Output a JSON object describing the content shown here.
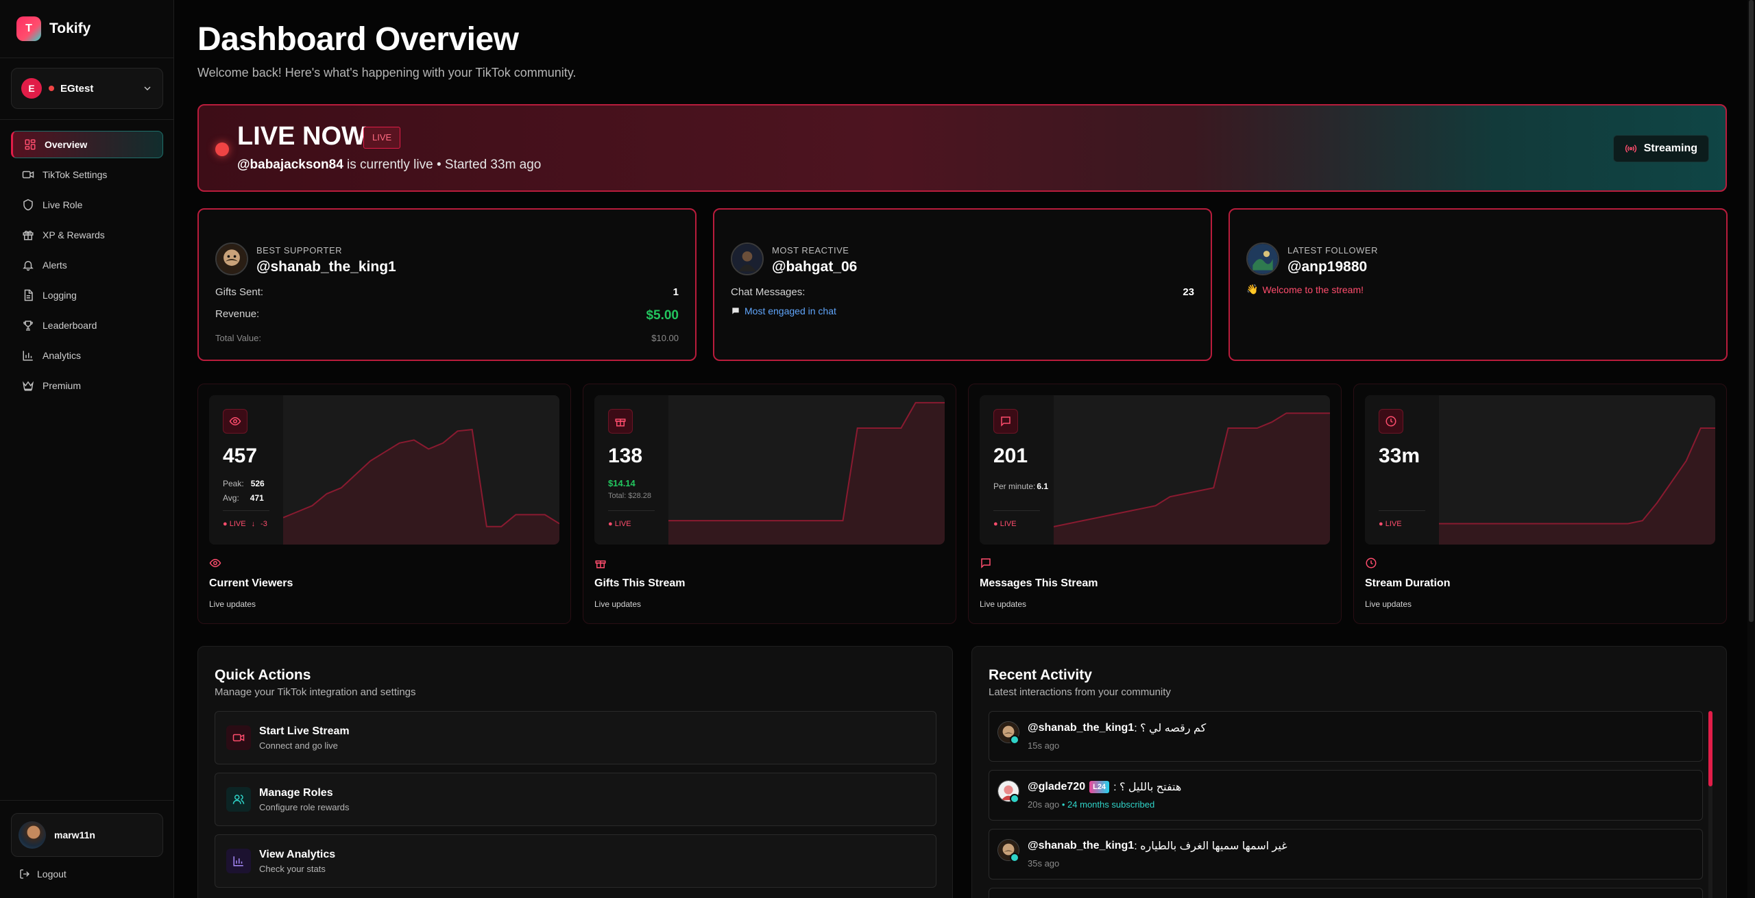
{
  "brand": {
    "logo_letter": "T",
    "name": "Tokify"
  },
  "account": {
    "initial": "E",
    "name": "EGtest"
  },
  "nav": [
    {
      "label": "Overview",
      "icon": "grid-icon",
      "active": true
    },
    {
      "label": "TikTok Settings",
      "icon": "video-icon"
    },
    {
      "label": "Live Role",
      "icon": "shield-icon"
    },
    {
      "label": "XP & Rewards",
      "icon": "gift-icon"
    },
    {
      "label": "Alerts",
      "icon": "bell-icon"
    },
    {
      "label": "Logging",
      "icon": "file-icon"
    },
    {
      "label": "Leaderboard",
      "icon": "trophy-icon"
    },
    {
      "label": "Analytics",
      "icon": "bar-chart-icon"
    },
    {
      "label": "Premium",
      "icon": "crown-icon"
    }
  ],
  "user": {
    "name": "marw11n",
    "logout": "Logout"
  },
  "header": {
    "title": "Dashboard Overview",
    "subtitle": "Welcome back! Here's what's happening with your TikTok community."
  },
  "live": {
    "title": "LIVE NOW",
    "tag": "LIVE",
    "username": "@babajackson84",
    "status_text": " is currently live • Started 33m ago",
    "button": "Streaming"
  },
  "supporters": {
    "best": {
      "label": "BEST SUPPORTER",
      "name": "@shanab_the_king1",
      "gifts_label": "Gifts Sent:",
      "gifts_value": "1",
      "revenue_label": "Revenue:",
      "revenue_value": "$5.00",
      "total_label": "Total Value:",
      "total_value": "$10.00"
    },
    "reactive": {
      "label": "MOST REACTIVE",
      "name": "@bahgat_06",
      "messages_label": "Chat Messages:",
      "messages_value": "23",
      "note": "Most engaged in chat"
    },
    "follower": {
      "label": "LATEST FOLLOWER",
      "name": "@anp19880",
      "note": "Welcome to the stream!"
    }
  },
  "stats": {
    "viewers": {
      "value": "457",
      "peak_label": "Peak:",
      "peak": "526",
      "avg_label": "Avg:",
      "avg": "471",
      "live": "● LIVE",
      "delta": "-3",
      "title": "Current Viewers",
      "sub": "Live updates"
    },
    "gifts": {
      "value": "138",
      "amount": "$14.14",
      "total": "Total: $28.28",
      "live": "● LIVE",
      "title": "Gifts This Stream",
      "sub": "Live updates"
    },
    "messages": {
      "value": "201",
      "rate_label": "Per minute:",
      "rate": "6.1",
      "live": "● LIVE",
      "title": "Messages This Stream",
      "sub": "Live updates"
    },
    "duration": {
      "value": "33m",
      "live": "● LIVE",
      "title": "Stream Duration",
      "sub": "Live updates"
    }
  },
  "sparklines": {
    "viewers": [
      0.18,
      0.22,
      0.26,
      0.34,
      0.38,
      0.47,
      0.56,
      0.62,
      0.68,
      0.7,
      0.64,
      0.68,
      0.76,
      0.77,
      0.12,
      0.12,
      0.2,
      0.2,
      0.2,
      0.14
    ],
    "gifts": [
      0.16,
      0.16,
      0.16,
      0.16,
      0.16,
      0.16,
      0.16,
      0.16,
      0.16,
      0.16,
      0.16,
      0.16,
      0.16,
      0.78,
      0.78,
      0.78,
      0.78,
      0.95,
      0.95,
      0.95
    ],
    "messages": [
      0.12,
      0.14,
      0.16,
      0.18,
      0.2,
      0.22,
      0.24,
      0.26,
      0.32,
      0.34,
      0.36,
      0.38,
      0.78,
      0.78,
      0.78,
      0.82,
      0.88,
      0.88,
      0.88,
      0.88
    ],
    "duration": [
      0.14,
      0.14,
      0.14,
      0.14,
      0.14,
      0.14,
      0.14,
      0.14,
      0.14,
      0.14,
      0.14,
      0.14,
      0.14,
      0.14,
      0.16,
      0.28,
      0.42,
      0.56,
      0.78,
      0.78
    ]
  },
  "quick_actions": {
    "title": "Quick Actions",
    "subtitle": "Manage your TikTok integration and settings",
    "items": [
      {
        "title": "Start Live Stream",
        "sub": "Connect and go live",
        "icon": "video-icon"
      },
      {
        "title": "Manage Roles",
        "sub": "Configure role rewards",
        "icon": "users-icon"
      },
      {
        "title": "View Analytics",
        "sub": "Check your stats",
        "icon": "bar-chart-icon"
      }
    ]
  },
  "activity": {
    "title": "Recent Activity",
    "subtitle": "Latest interactions from your community",
    "items": [
      {
        "user": "@shanab_the_king1",
        "message": ": كم رقصه لي ؟",
        "time": "15s ago",
        "level": "",
        "extra": ""
      },
      {
        "user": "@glade720",
        "level": "L24",
        "message": ": هتفتح بالليل ؟",
        "time": "20s ago",
        "extra": "• 24 months subscribed"
      },
      {
        "user": "@shanab_the_king1",
        "message": ": غير اسمها سميها الغرف بالطياره",
        "time": "35s ago",
        "level": "",
        "extra": ""
      }
    ]
  },
  "colors": {
    "accent": "#e11d48",
    "teal": "#2fd3c8",
    "green": "#22c55e",
    "blue": "#60a5fa"
  }
}
